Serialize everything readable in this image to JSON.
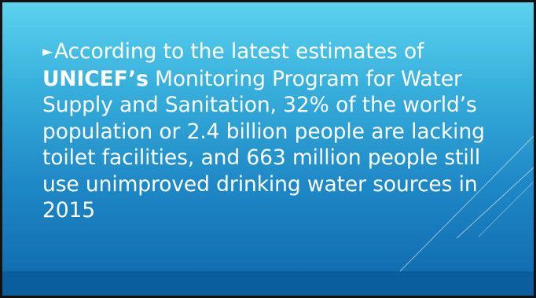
{
  "slide": {
    "bullet_glyph": "►",
    "text_before": "According to the latest estimates of ",
    "bold_text": "UNICEF’s",
    "text_after": " Monitoring Program for Water Supply and Sanitation, 32% of the world’s population or 2.4 billion people are lacking toilet facilities, and 663 million people still use unimproved drinking water sources in 2015"
  },
  "colors": {
    "gradient_top": "#5cd2ef",
    "gradient_bottom": "#0f67ab",
    "bottom_band": "#0b5e9e",
    "text": "#ffffff",
    "border": "#111111"
  }
}
